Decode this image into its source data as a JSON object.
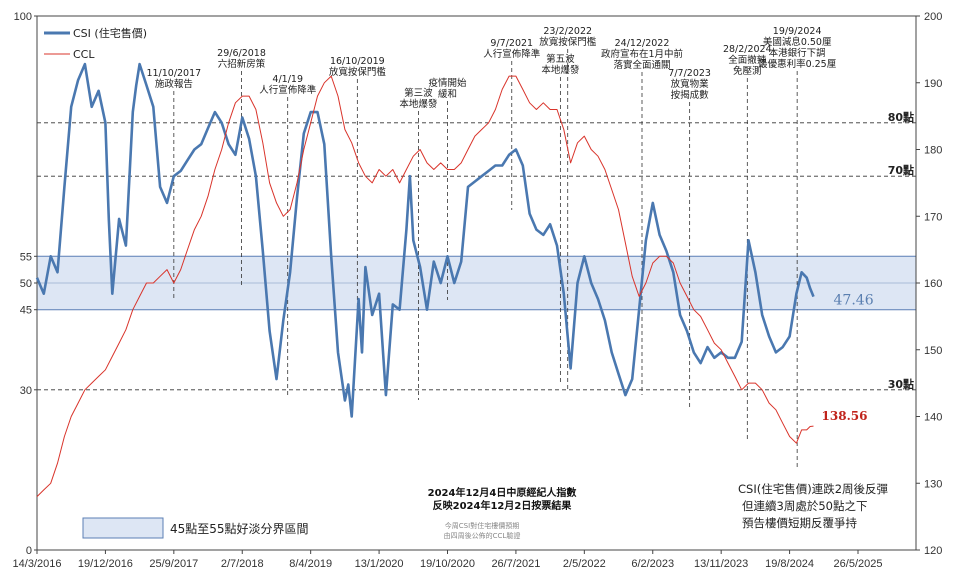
{
  "chart_data": {
    "type": "line",
    "title": "",
    "xlabel": "",
    "left_ylabel": "",
    "right_ylabel": "",
    "x_tick_labels": [
      "14/3/2016",
      "19/12/2016",
      "25/9/2017",
      "2/7/2018",
      "8/4/2019",
      "13/1/2020",
      "19/10/2020",
      "26/7/2021",
      "2/5/2022",
      "6/2/2023",
      "13/11/2023",
      "19/8/2024",
      "26/5/2025"
    ],
    "x_range": [
      "14/3/2016",
      "26/5/2025"
    ],
    "left_axis": {
      "range": [
        0,
        100
      ],
      "ticks": [
        "0",
        "30",
        "45",
        "50",
        "55",
        "100"
      ]
    },
    "right_axis": {
      "range": [
        120,
        200
      ],
      "ticks": [
        "120",
        "130",
        "140",
        "150",
        "160",
        "170",
        "180",
        "190",
        "200"
      ]
    },
    "reference_lines": [
      {
        "value": 80,
        "label": "80點"
      },
      {
        "value": 70,
        "label": "70點"
      },
      {
        "value": 30,
        "label": "30點"
      }
    ],
    "band": {
      "from": 45,
      "to": 55,
      "center": 50,
      "legend_label": "45點至55點好淡分界區間"
    },
    "legend": [
      {
        "name": "CSI (住宅售價)",
        "color": "#4a78b0"
      },
      {
        "name": "CCL",
        "color": "#d9342b"
      }
    ],
    "series": [
      {
        "name": "CSI (住宅售價)",
        "axis": "left",
        "color": "#4a78b0",
        "last_value_label": "47.46",
        "points": [
          [
            "14/3/2016",
            51
          ],
          [
            "11/4/2016",
            48
          ],
          [
            "9/5/2016",
            55
          ],
          [
            "6/6/2016",
            52
          ],
          [
            "4/7/2016",
            68
          ],
          [
            "1/8/2016",
            83
          ],
          [
            "29/8/2016",
            88
          ],
          [
            "26/9/2016",
            91
          ],
          [
            "24/10/2016",
            83
          ],
          [
            "21/11/2016",
            86
          ],
          [
            "19/12/2016",
            80
          ],
          [
            "2/1/2017",
            62
          ],
          [
            "16/1/2017",
            48
          ],
          [
            "13/2/2017",
            62
          ],
          [
            "13/3/2017",
            57
          ],
          [
            "10/4/2017",
            82
          ],
          [
            "24/4/2017",
            87
          ],
          [
            "8/5/2017",
            91
          ],
          [
            "5/6/2017",
            87
          ],
          [
            "3/7/2017",
            83
          ],
          [
            "31/7/2017",
            68
          ],
          [
            "28/8/2017",
            65
          ],
          [
            "25/9/2017",
            70
          ],
          [
            "23/10/2017",
            71
          ],
          [
            "20/11/2017",
            73
          ],
          [
            "18/12/2017",
            75
          ],
          [
            "15/1/2018",
            76
          ],
          [
            "12/2/2018",
            79
          ],
          [
            "12/3/2018",
            82
          ],
          [
            "9/4/2018",
            80
          ],
          [
            "7/5/2018",
            76
          ],
          [
            "4/6/2018",
            74
          ],
          [
            "2/7/2018",
            81
          ],
          [
            "30/7/2018",
            77
          ],
          [
            "27/8/2018",
            70
          ],
          [
            "24/9/2018",
            56
          ],
          [
            "22/10/2018",
            41
          ],
          [
            "19/11/2018",
            32
          ],
          [
            "17/12/2018",
            43
          ],
          [
            "14/1/2019",
            52
          ],
          [
            "11/2/2019",
            66
          ],
          [
            "11/3/2019",
            78
          ],
          [
            "8/4/2019",
            82
          ],
          [
            "6/5/2019",
            82
          ],
          [
            "3/6/2019",
            76
          ],
          [
            "1/7/2019",
            55
          ],
          [
            "29/7/2019",
            37
          ],
          [
            "26/8/2019",
            28
          ],
          [
            "9/9/2019",
            31
          ],
          [
            "23/9/2019",
            25
          ],
          [
            "21/10/2019",
            47
          ],
          [
            "4/11/2019",
            37
          ],
          [
            "18/11/2019",
            53
          ],
          [
            "16/12/2019",
            44
          ],
          [
            "13/1/2020",
            48
          ],
          [
            "10/2/2020",
            29
          ],
          [
            "9/3/2020",
            46
          ],
          [
            "6/4/2020",
            45
          ],
          [
            "4/5/2020",
            60
          ],
          [
            "18/5/2020",
            70
          ],
          [
            "1/6/2020",
            58
          ],
          [
            "29/6/2020",
            53
          ],
          [
            "27/7/2020",
            45
          ],
          [
            "24/8/2020",
            54
          ],
          [
            "21/9/2020",
            50
          ],
          [
            "19/10/2020",
            55
          ],
          [
            "16/11/2020",
            50
          ],
          [
            "14/12/2020",
            54
          ],
          [
            "11/1/2021",
            68
          ],
          [
            "8/2/2021",
            69
          ],
          [
            "8/3/2021",
            70
          ],
          [
            "5/4/2021",
            71
          ],
          [
            "3/5/2021",
            72
          ],
          [
            "31/5/2021",
            72
          ],
          [
            "28/6/2021",
            74
          ],
          [
            "26/7/2021",
            75
          ],
          [
            "23/8/2021",
            72
          ],
          [
            "20/9/2021",
            63
          ],
          [
            "18/10/2021",
            60
          ],
          [
            "15/11/2021",
            59
          ],
          [
            "13/12/2021",
            61
          ],
          [
            "10/1/2022",
            57
          ],
          [
            "7/2/2022",
            48
          ],
          [
            "7/3/2022",
            34
          ],
          [
            "4/4/2022",
            50
          ],
          [
            "2/5/2022",
            55
          ],
          [
            "30/5/2022",
            50
          ],
          [
            "27/6/2022",
            47
          ],
          [
            "25/7/2022",
            43
          ],
          [
            "22/8/2022",
            37
          ],
          [
            "19/9/2022",
            33
          ],
          [
            "17/10/2022",
            29
          ],
          [
            "14/11/2022",
            32
          ],
          [
            "12/12/2022",
            45
          ],
          [
            "9/1/2023",
            58
          ],
          [
            "6/2/2023",
            65
          ],
          [
            "6/3/2023",
            59
          ],
          [
            "3/4/2023",
            56
          ],
          [
            "1/5/2023",
            52
          ],
          [
            "29/5/2023",
            44
          ],
          [
            "26/6/2023",
            41
          ],
          [
            "24/7/2023",
            37
          ],
          [
            "21/8/2023",
            35
          ],
          [
            "18/9/2023",
            38
          ],
          [
            "16/10/2023",
            36
          ],
          [
            "13/11/2023",
            37
          ],
          [
            "11/12/2023",
            36
          ],
          [
            "8/1/2024",
            36
          ],
          [
            "5/2/2024",
            39
          ],
          [
            "4/3/2024",
            58
          ],
          [
            "1/4/2024",
            52
          ],
          [
            "29/4/2024",
            44
          ],
          [
            "27/5/2024",
            40
          ],
          [
            "24/6/2024",
            37
          ],
          [
            "22/7/2024",
            38
          ],
          [
            "19/8/2024",
            40
          ],
          [
            "16/9/2024",
            48
          ],
          [
            "7/10/2024",
            52
          ],
          [
            "28/10/2024",
            51
          ],
          [
            "11/11/2024",
            49
          ],
          [
            "25/11/2024",
            47.46
          ]
        ]
      },
      {
        "name": "CCL",
        "axis": "right",
        "color": "#d9342b",
        "last_value_label": "138.56",
        "points": [
          [
            "14/3/2016",
            128
          ],
          [
            "11/4/2016",
            129
          ],
          [
            "9/5/2016",
            130
          ],
          [
            "6/6/2016",
            133
          ],
          [
            "4/7/2016",
            137
          ],
          [
            "1/8/2016",
            140
          ],
          [
            "29/8/2016",
            142
          ],
          [
            "26/9/2016",
            144
          ],
          [
            "24/10/2016",
            145
          ],
          [
            "21/11/2016",
            146
          ],
          [
            "19/12/2016",
            147
          ],
          [
            "16/1/2017",
            149
          ],
          [
            "13/2/2017",
            151
          ],
          [
            "13/3/2017",
            153
          ],
          [
            "10/4/2017",
            156
          ],
          [
            "8/5/2017",
            158
          ],
          [
            "5/6/2017",
            160
          ],
          [
            "3/7/2017",
            160
          ],
          [
            "31/7/2017",
            161
          ],
          [
            "28/8/2017",
            162
          ],
          [
            "25/9/2017",
            160
          ],
          [
            "23/10/2017",
            162
          ],
          [
            "20/11/2017",
            165
          ],
          [
            "18/12/2017",
            168
          ],
          [
            "15/1/2018",
            170
          ],
          [
            "12/2/2018",
            173
          ],
          [
            "12/3/2018",
            177
          ],
          [
            "9/4/2018",
            180
          ],
          [
            "7/5/2018",
            184
          ],
          [
            "4/6/2018",
            187
          ],
          [
            "2/7/2018",
            188
          ],
          [
            "30/7/2018",
            188
          ],
          [
            "27/8/2018",
            186
          ],
          [
            "24/9/2018",
            181
          ],
          [
            "22/10/2018",
            175
          ],
          [
            "19/11/2018",
            172
          ],
          [
            "17/12/2018",
            170
          ],
          [
            "14/1/2019",
            171
          ],
          [
            "11/2/2019",
            175
          ],
          [
            "11/3/2019",
            180
          ],
          [
            "8/4/2019",
            184
          ],
          [
            "6/5/2019",
            188
          ],
          [
            "3/6/2019",
            190
          ],
          [
            "1/7/2019",
            191
          ],
          [
            "29/7/2019",
            188
          ],
          [
            "26/8/2019",
            183
          ],
          [
            "23/9/2019",
            181
          ],
          [
            "21/10/2019",
            178
          ],
          [
            "18/11/2019",
            176
          ],
          [
            "16/12/2019",
            175
          ],
          [
            "13/1/2020",
            177
          ],
          [
            "10/2/2020",
            176
          ],
          [
            "9/3/2020",
            177
          ],
          [
            "6/4/2020",
            175
          ],
          [
            "4/5/2020",
            177
          ],
          [
            "1/6/2020",
            179
          ],
          [
            "29/6/2020",
            180
          ],
          [
            "27/7/2020",
            178
          ],
          [
            "24/8/2020",
            177
          ],
          [
            "21/9/2020",
            178
          ],
          [
            "19/10/2020",
            177
          ],
          [
            "16/11/2020",
            177
          ],
          [
            "14/12/2020",
            178
          ],
          [
            "11/1/2021",
            180
          ],
          [
            "8/2/2021",
            182
          ],
          [
            "8/3/2021",
            183
          ],
          [
            "5/4/2021",
            184
          ],
          [
            "3/5/2021",
            186
          ],
          [
            "31/5/2021",
            189
          ],
          [
            "28/6/2021",
            191
          ],
          [
            "26/7/2021",
            191
          ],
          [
            "23/8/2021",
            189
          ],
          [
            "20/9/2021",
            187
          ],
          [
            "18/10/2021",
            186
          ],
          [
            "15/11/2021",
            187
          ],
          [
            "13/12/2021",
            186
          ],
          [
            "10/1/2022",
            186
          ],
          [
            "7/2/2022",
            183
          ],
          [
            "7/3/2022",
            178
          ],
          [
            "4/4/2022",
            181
          ],
          [
            "2/5/2022",
            182
          ],
          [
            "30/5/2022",
            180
          ],
          [
            "27/6/2022",
            179
          ],
          [
            "25/7/2022",
            177
          ],
          [
            "22/8/2022",
            174
          ],
          [
            "19/9/2022",
            171
          ],
          [
            "17/10/2022",
            166
          ],
          [
            "14/11/2022",
            161
          ],
          [
            "12/12/2022",
            158
          ],
          [
            "9/1/2023",
            160
          ],
          [
            "6/2/2023",
            163
          ],
          [
            "6/3/2023",
            164
          ],
          [
            "3/4/2023",
            164
          ],
          [
            "1/5/2023",
            163
          ],
          [
            "29/5/2023",
            160
          ],
          [
            "26/6/2023",
            158
          ],
          [
            "24/7/2023",
            156
          ],
          [
            "21/8/2023",
            155
          ],
          [
            "18/9/2023",
            153
          ],
          [
            "16/10/2023",
            151
          ],
          [
            "13/11/2023",
            150
          ],
          [
            "11/12/2023",
            148
          ],
          [
            "8/1/2024",
            146
          ],
          [
            "5/2/2024",
            144
          ],
          [
            "4/3/2024",
            145
          ],
          [
            "1/4/2024",
            145
          ],
          [
            "29/4/2024",
            144
          ],
          [
            "27/5/2024",
            142
          ],
          [
            "24/6/2024",
            141
          ],
          [
            "22/7/2024",
            139
          ],
          [
            "19/8/2024",
            137
          ],
          [
            "16/9/2024",
            136
          ],
          [
            "7/10/2024",
            138
          ],
          [
            "28/10/2024",
            138
          ],
          [
            "11/11/2024",
            138.5
          ],
          [
            "25/11/2024",
            138.56
          ]
        ]
      }
    ],
    "event_annotations": [
      {
        "date": "25/9/2017",
        "lines": [
          "11/10/2017",
          "施政報告"
        ]
      },
      {
        "date": "29/6/2018",
        "lines": [
          "29/6/2018",
          "六招新房策"
        ]
      },
      {
        "date": "4/1/2019",
        "lines": [
          "4/1/19",
          "人行宣佈降準"
        ]
      },
      {
        "date": "16/10/2019",
        "lines": [
          "16/10/2019",
          "放寬按保門檻"
        ]
      },
      {
        "date": "22/6/2020",
        "lines": [
          "第三波",
          "本地爆發"
        ]
      },
      {
        "date": "19/10/2020",
        "lines": [
          "疫情開始",
          "緩和"
        ]
      },
      {
        "date": "9/7/2021",
        "lines": [
          "9/7/2021",
          "人行宣佈降準"
        ]
      },
      {
        "date": "23/2/2022",
        "lines": [
          "23/2/2022",
          "放寬按保門檻"
        ]
      },
      {
        "date": "24/1/2022",
        "lines": [
          "第五波",
          "本地爆發"
        ]
      },
      {
        "date": "24/12/2022",
        "lines": [
          "24/12/2022",
          "政府宣布在1月中前",
          "落實全面通關"
        ]
      },
      {
        "date": "7/7/2023",
        "lines": [
          "7/7/2023",
          "放寬物業",
          "按揭成數"
        ]
      },
      {
        "date": "28/2/2024",
        "lines": [
          "28/2/2024",
          "全面撤辣",
          "免壓測"
        ]
      },
      {
        "date": "19/9/2024",
        "lines": [
          "19/9/2024",
          "美國減息0.50厘",
          "本港銀行下調",
          "最優惠利率0.25厘"
        ]
      }
    ],
    "grid": false,
    "legend_placement": "top-left"
  },
  "chart_title_lines": [
    "2024年12月4日中原經紀人指數",
    "反映2024年12月2日按票結果"
  ],
  "note_lines": [
    "今周CSI對住宅樓價預期",
    "由四周後公佈的CCL驗證"
  ],
  "comment_lines": [
    "CSI(住宅售價)連跌2周後反彈",
    "但連續3周處於50點之下",
    "預告樓價短期反覆爭持"
  ]
}
